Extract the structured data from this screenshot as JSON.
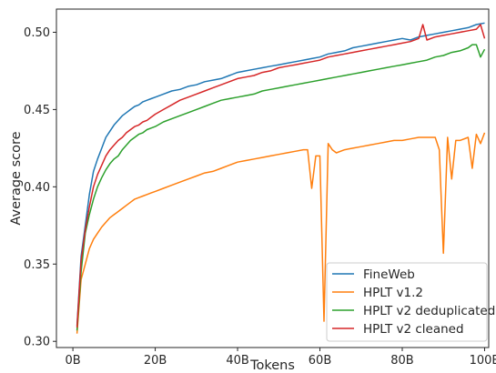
{
  "chart_data": {
    "type": "line",
    "xlabel": "Tokens",
    "ylabel": "Average score",
    "xlim": [
      -4,
      101
    ],
    "ylim": [
      0.296,
      0.515
    ],
    "x_ticks": [
      {
        "value": 0,
        "label": "0B"
      },
      {
        "value": 20,
        "label": "20B"
      },
      {
        "value": 40,
        "label": "40B"
      },
      {
        "value": 60,
        "label": "60B"
      },
      {
        "value": 80,
        "label": "80B"
      },
      {
        "value": 100,
        "label": "100B"
      }
    ],
    "y_ticks": [
      {
        "value": 0.3,
        "label": "0.30"
      },
      {
        "value": 0.35,
        "label": "0.35"
      },
      {
        "value": 0.4,
        "label": "0.40"
      },
      {
        "value": 0.45,
        "label": "0.45"
      },
      {
        "value": 0.5,
        "label": "0.50"
      }
    ],
    "grid": false,
    "legend_position": "bottom-right",
    "series": [
      {
        "name": "FineWeb",
        "color": "#1f77b4",
        "x": [
          1,
          2,
          3,
          4,
          5,
          6,
          7,
          8,
          9,
          10,
          11,
          12,
          13,
          14,
          15,
          16,
          17,
          18,
          19,
          20,
          22,
          24,
          26,
          28,
          30,
          32,
          34,
          36,
          38,
          40,
          42,
          44,
          46,
          48,
          50,
          52,
          54,
          56,
          58,
          60,
          62,
          64,
          66,
          68,
          70,
          72,
          74,
          76,
          78,
          80,
          82,
          84,
          86,
          88,
          90,
          92,
          94,
          96,
          98,
          100
        ],
        "y": [
          0.31,
          0.355,
          0.375,
          0.395,
          0.41,
          0.418,
          0.425,
          0.432,
          0.436,
          0.44,
          0.443,
          0.446,
          0.448,
          0.45,
          0.452,
          0.453,
          0.455,
          0.456,
          0.457,
          0.458,
          0.46,
          0.462,
          0.463,
          0.465,
          0.466,
          0.468,
          0.469,
          0.47,
          0.472,
          0.474,
          0.475,
          0.476,
          0.477,
          0.478,
          0.479,
          0.48,
          0.481,
          0.482,
          0.483,
          0.484,
          0.486,
          0.487,
          0.488,
          0.49,
          0.491,
          0.492,
          0.493,
          0.494,
          0.495,
          0.496,
          0.495,
          0.497,
          0.498,
          0.499,
          0.5,
          0.501,
          0.502,
          0.503,
          0.505,
          0.506
        ]
      },
      {
        "name": "HPLT v1.2",
        "color": "#ff7f0e",
        "x": [
          1,
          2,
          3,
          4,
          5,
          6,
          7,
          8,
          9,
          10,
          11,
          12,
          13,
          14,
          15,
          16,
          17,
          18,
          19,
          20,
          22,
          24,
          26,
          28,
          30,
          32,
          34,
          36,
          38,
          40,
          42,
          44,
          46,
          48,
          50,
          52,
          54,
          56,
          57,
          58,
          59,
          60,
          61,
          62,
          63,
          64,
          66,
          68,
          70,
          72,
          74,
          76,
          78,
          80,
          82,
          84,
          86,
          88,
          89,
          90,
          91,
          92,
          93,
          94,
          96,
          97,
          98,
          99,
          100
        ],
        "y": [
          0.305,
          0.34,
          0.35,
          0.36,
          0.366,
          0.37,
          0.374,
          0.377,
          0.38,
          0.382,
          0.384,
          0.386,
          0.388,
          0.39,
          0.392,
          0.393,
          0.394,
          0.395,
          0.396,
          0.397,
          0.399,
          0.401,
          0.403,
          0.405,
          0.407,
          0.409,
          0.41,
          0.412,
          0.414,
          0.416,
          0.417,
          0.418,
          0.419,
          0.42,
          0.421,
          0.422,
          0.423,
          0.424,
          0.424,
          0.399,
          0.42,
          0.42,
          0.313,
          0.428,
          0.424,
          0.422,
          0.424,
          0.425,
          0.426,
          0.427,
          0.428,
          0.429,
          0.43,
          0.43,
          0.431,
          0.432,
          0.432,
          0.432,
          0.424,
          0.357,
          0.432,
          0.405,
          0.43,
          0.43,
          0.432,
          0.412,
          0.434,
          0.428,
          0.435
        ]
      },
      {
        "name": "HPLT v2 deduplicated",
        "color": "#2ca02c",
        "x": [
          1,
          2,
          3,
          4,
          5,
          6,
          7,
          8,
          9,
          10,
          11,
          12,
          13,
          14,
          15,
          16,
          17,
          18,
          19,
          20,
          22,
          24,
          26,
          28,
          30,
          32,
          34,
          36,
          38,
          40,
          42,
          44,
          46,
          48,
          50,
          52,
          54,
          56,
          58,
          60,
          62,
          64,
          66,
          68,
          70,
          72,
          74,
          76,
          78,
          80,
          82,
          84,
          86,
          88,
          90,
          92,
          94,
          96,
          97,
          98,
          99,
          100
        ],
        "y": [
          0.307,
          0.345,
          0.37,
          0.382,
          0.392,
          0.4,
          0.406,
          0.411,
          0.415,
          0.418,
          0.42,
          0.424,
          0.427,
          0.43,
          0.432,
          0.434,
          0.435,
          0.437,
          0.438,
          0.439,
          0.442,
          0.444,
          0.446,
          0.448,
          0.45,
          0.452,
          0.454,
          0.456,
          0.457,
          0.458,
          0.459,
          0.46,
          0.462,
          0.463,
          0.464,
          0.465,
          0.466,
          0.467,
          0.468,
          0.469,
          0.47,
          0.471,
          0.472,
          0.473,
          0.474,
          0.475,
          0.476,
          0.477,
          0.478,
          0.479,
          0.48,
          0.481,
          0.482,
          0.484,
          0.485,
          0.487,
          0.488,
          0.49,
          0.492,
          0.492,
          0.484,
          0.489
        ]
      },
      {
        "name": "HPLT v2 cleaned",
        "color": "#d62728",
        "x": [
          1,
          2,
          3,
          4,
          5,
          6,
          7,
          8,
          9,
          10,
          11,
          12,
          13,
          14,
          15,
          16,
          17,
          18,
          19,
          20,
          22,
          24,
          26,
          28,
          30,
          32,
          34,
          36,
          38,
          40,
          42,
          44,
          46,
          48,
          50,
          52,
          54,
          56,
          58,
          60,
          62,
          64,
          66,
          68,
          70,
          72,
          74,
          76,
          78,
          80,
          82,
          84,
          85,
          86,
          88,
          90,
          92,
          94,
          96,
          98,
          99,
          100
        ],
        "y": [
          0.309,
          0.352,
          0.372,
          0.387,
          0.4,
          0.408,
          0.414,
          0.42,
          0.424,
          0.427,
          0.43,
          0.432,
          0.435,
          0.437,
          0.439,
          0.44,
          0.442,
          0.443,
          0.445,
          0.447,
          0.45,
          0.453,
          0.456,
          0.458,
          0.46,
          0.462,
          0.464,
          0.466,
          0.468,
          0.47,
          0.471,
          0.472,
          0.474,
          0.475,
          0.477,
          0.478,
          0.479,
          0.48,
          0.481,
          0.482,
          0.484,
          0.485,
          0.486,
          0.487,
          0.488,
          0.489,
          0.49,
          0.491,
          0.492,
          0.493,
          0.494,
          0.496,
          0.505,
          0.495,
          0.497,
          0.498,
          0.499,
          0.5,
          0.501,
          0.502,
          0.505,
          0.496
        ]
      }
    ]
  }
}
